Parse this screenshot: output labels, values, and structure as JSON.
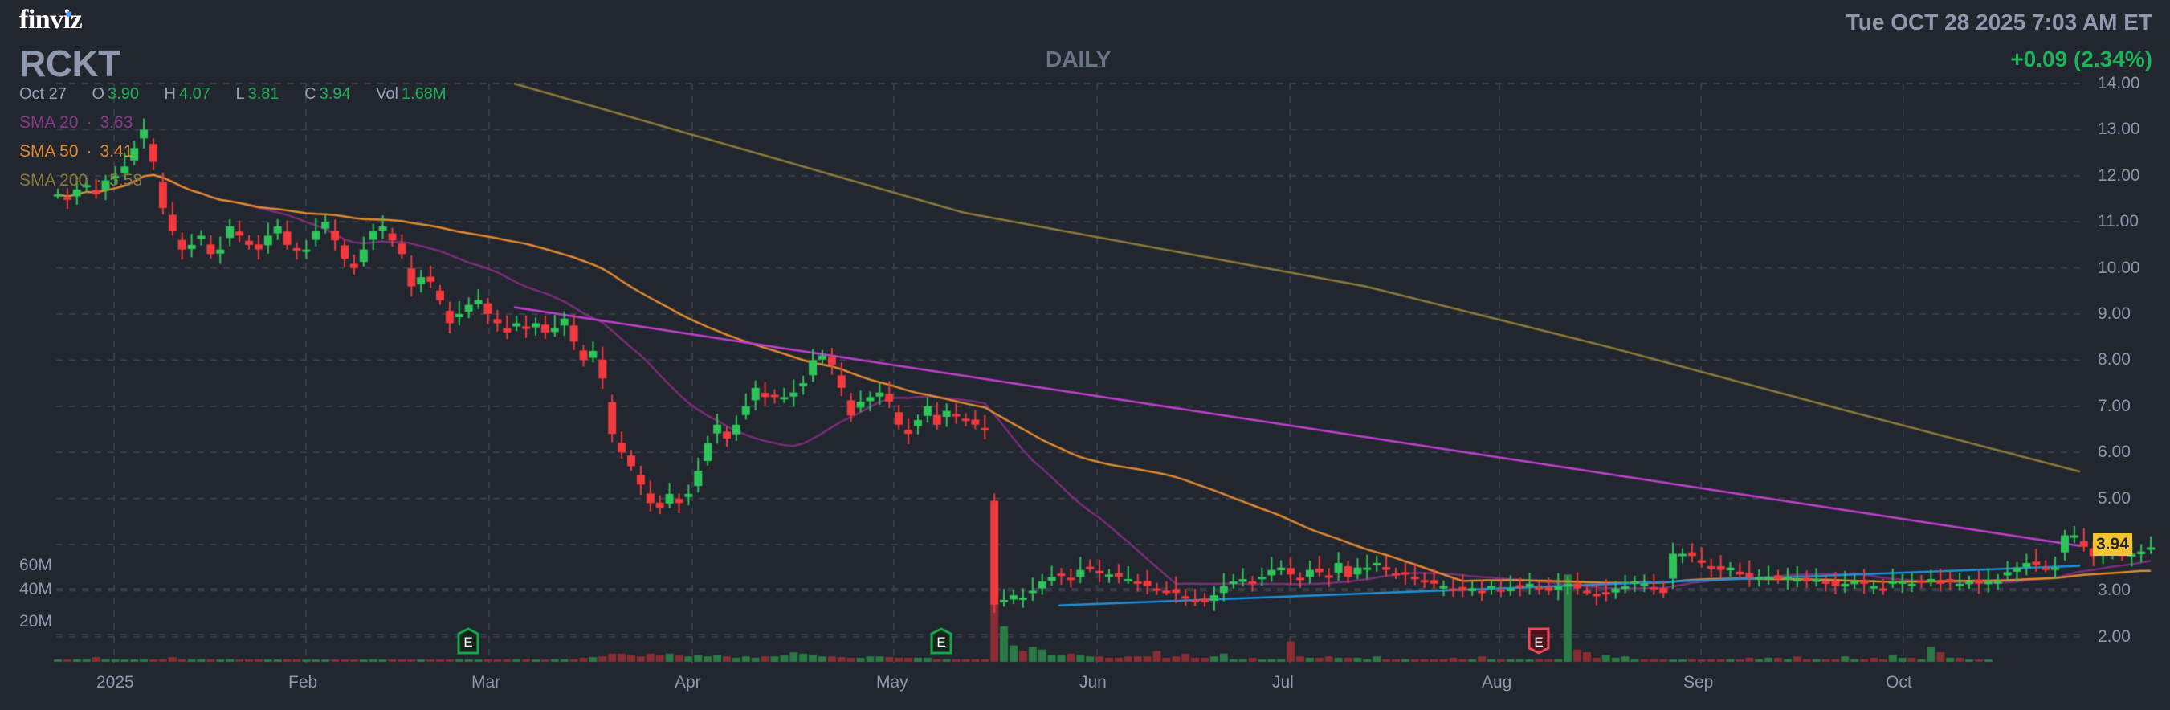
{
  "header": {
    "logo": "finviz",
    "ticker": "RCKT",
    "timeframe": "DAILY",
    "datetime": "Tue OCT 28 2025 7:03 AM ET",
    "change": "+0.09 (2.34%)"
  },
  "ohlc": {
    "date": "Oct 27",
    "open_label": "O",
    "open": "3.90",
    "high_label": "H",
    "high": "4.07",
    "low_label": "L",
    "low": "3.81",
    "close_label": "C",
    "close": "3.94",
    "vol_label": "Vol",
    "vol": "1.68M"
  },
  "legend": [
    {
      "label": "SMA 20",
      "value": "3.63",
      "color": "#8a3a86"
    },
    {
      "label": "SMA 50",
      "value": "3.41",
      "color": "#e08a2e"
    },
    {
      "label": "SMA 200",
      "value": "5.58",
      "color": "#8a7a3a"
    }
  ],
  "last_price": "3.94",
  "colors": {
    "background": "#22262f",
    "up": "#2ec45a",
    "down": "#f2393e",
    "vol_up": "#2a7a45",
    "vol_down": "#8a2c33",
    "grid": "#3a3f4b",
    "sma20": "#7a2e78",
    "sma50": "#e08a2e",
    "sma200": "#8a7a3a",
    "trendline_down": "#c040d0",
    "trendline_up": "#1e90d8",
    "last_price_bg": "#f4c531"
  },
  "chart_data": {
    "type": "candlestick",
    "title": "RCKT DAILY",
    "price_axis": {
      "ticks": [
        "14.00",
        "13.00",
        "12.00",
        "11.00",
        "10.00",
        "9.00",
        "8.00",
        "7.00",
        "6.00",
        "5.00",
        "3.00",
        "2.00"
      ],
      "range": [
        1.5,
        14.0
      ]
    },
    "volume_axis": {
      "ticks": [
        "60M",
        "40M",
        "20M"
      ]
    },
    "x_axis": {
      "ticks": [
        "2025",
        "Feb",
        "Mar",
        "Apr",
        "May",
        "Jun",
        "Jul",
        "Aug",
        "Sep",
        "Oct"
      ]
    },
    "earnings_markers": [
      {
        "label": "E",
        "month": "Feb",
        "type": "positive"
      },
      {
        "label": "E",
        "month": "May",
        "type": "positive"
      },
      {
        "label": "E",
        "month": "Aug",
        "type": "negative"
      }
    ],
    "sma": {
      "sma20": 3.63,
      "sma50": 3.41,
      "sma200": 5.58
    },
    "closes": [
      11.6,
      11.5,
      11.7,
      11.8,
      11.6,
      11.9,
      12.0,
      12.2,
      12.6,
      13.0,
      12.3,
      11.3,
      10.8,
      10.4,
      10.5,
      10.7,
      10.3,
      10.4,
      10.9,
      10.7,
      10.5,
      10.4,
      10.7,
      10.9,
      10.5,
      10.4,
      10.4,
      10.8,
      11.0,
      10.6,
      10.2,
      10.0,
      10.4,
      10.8,
      10.9,
      10.6,
      10.3,
      9.6,
      9.8,
      9.7,
      9.3,
      8.8,
      9.0,
      9.2,
      9.3,
      9.0,
      8.8,
      8.6,
      8.8,
      8.7,
      8.8,
      8.6,
      8.7,
      8.9,
      8.4,
      8.0,
      8.2,
      7.6,
      6.4,
      6.0,
      5.7,
      5.3,
      4.9,
      4.8,
      5.1,
      4.9,
      5.1,
      5.6,
      6.2,
      6.6,
      6.3,
      6.6,
      7.0,
      7.4,
      7.2,
      7.2,
      7.2,
      7.3,
      7.5,
      8.0,
      8.1,
      7.9,
      7.4,
      6.8,
      7.1,
      7.2,
      7.3,
      7.1,
      6.6,
      6.4,
      6.7,
      7.0,
      6.6,
      6.9,
      6.8,
      6.7,
      6.6,
      6.5,
      2.7,
      2.8,
      2.9,
      2.85,
      3.0,
      3.2,
      3.3,
      3.35,
      3.25,
      3.45,
      3.5,
      3.4,
      3.35,
      3.3,
      3.25,
      3.2,
      3.1,
      3.05,
      3.0,
      2.95,
      2.85,
      2.8,
      2.75,
      2.9,
      3.1,
      3.2,
      3.25,
      3.2,
      3.3,
      3.45,
      3.5,
      3.35,
      3.25,
      3.45,
      3.4,
      3.3,
      3.6,
      3.3,
      3.5,
      3.5,
      3.6,
      3.45,
      3.35,
      3.35,
      3.3,
      3.2,
      3.15,
      3.1,
      3.05,
      3.0,
      3.05,
      3.0,
      3.1,
      3.0,
      3.05,
      3.1,
      3.15,
      3.05,
      3.0,
      3.1,
      3.15,
      3.05,
      3.0,
      2.9,
      2.95,
      3.05,
      3.1,
      3.2,
      3.15,
      3.05,
      2.95,
      3.8,
      3.8,
      3.75,
      3.6,
      3.5,
      3.45,
      3.5,
      3.35,
      3.3,
      3.3,
      3.3,
      3.25,
      3.3,
      3.25,
      3.2,
      3.25,
      3.2,
      3.1,
      3.15,
      3.2,
      3.15,
      3.1,
      3.05,
      3.2,
      3.2,
      3.15,
      3.2,
      3.25,
      3.2,
      3.2,
      3.15,
      3.2,
      3.15,
      3.2,
      3.2,
      3.4,
      3.5,
      3.6,
      3.55,
      3.5,
      3.5,
      4.2,
      4.2,
      3.95,
      3.75,
      3.85,
      3.85,
      3.75,
      3.8,
      3.85,
      3.94
    ],
    "volumes_m": [
      1.5,
      1.3,
      2.0,
      2.0,
      3.5,
      2.0,
      2.0,
      1.2,
      1.2,
      2.0,
      1.2,
      2.0,
      3.5,
      2.0,
      2.0,
      2.0,
      2.0,
      1.2,
      2.0,
      1.2,
      1.2,
      2.0,
      1.2,
      1.2,
      2.0,
      2.0,
      1.2,
      1.2,
      1.2,
      1.2,
      1.2,
      1.2,
      1.2,
      2.0,
      1.2,
      1.2,
      1.2,
      1.2,
      1.2,
      1.2,
      1.2,
      1.2,
      2.0,
      1.2,
      1.2,
      2.0,
      1.2,
      2.0,
      2.0,
      2.0,
      1.2,
      1.2,
      2.0,
      2.0,
      2.0,
      3.0,
      3.5,
      4.0,
      6.0,
      6.0,
      5.0,
      4.0,
      6.0,
      5.0,
      6.0,
      5.0,
      4.0,
      5.0,
      4.0,
      5.0,
      4.0,
      3.0,
      4.0,
      3.0,
      4.0,
      4.0,
      5.0,
      7.0,
      6.0,
      5.0,
      4.0,
      4.0,
      3.5,
      3.0,
      3.0,
      4.0,
      4.0,
      3.5,
      3.0,
      3.0,
      3.0,
      3.0,
      2.0,
      2.0,
      2.0,
      2.0,
      2.0,
      2.0,
      63.0,
      26.0,
      12.0,
      8.0,
      11.0,
      9.0,
      5.0,
      5.0,
      6.0,
      5.0,
      4.0,
      4.0,
      3.0,
      3.0,
      4.0,
      4.0,
      4.0,
      8.0,
      3.0,
      4.0,
      6.0,
      3.0,
      3.0,
      4.0,
      6.0,
      2.0,
      2.0,
      3.0,
      1.0,
      2.0,
      2.0,
      15.0,
      4.0,
      3.0,
      3.0,
      4.0,
      3.0,
      3.0,
      3.0,
      2.0,
      4.0,
      2.0,
      2.0,
      2.0,
      2.0,
      2.0,
      2.0,
      2.0,
      3.0,
      2.0,
      2.0,
      4.0,
      2.0,
      2.0,
      2.0,
      2.0,
      1.0,
      2.0,
      2.0,
      2.0,
      64.0,
      9.0,
      7.0,
      3.0,
      5.0,
      3.0,
      4.0,
      2.0,
      2.0,
      2.0,
      2.0,
      1.0,
      1.0,
      2.0,
      1.0,
      2.0,
      2.0,
      2.0,
      1.0,
      3.0,
      2.0,
      3.0,
      3.0,
      2.0,
      4.0,
      2.0,
      2.0,
      2.0,
      2.0,
      4.0,
      2.0,
      2.0,
      3.0,
      2.0,
      5.0,
      3.0,
      3.0,
      2.0,
      11.0,
      7.0,
      3.0,
      3.0,
      1.5,
      1.0,
      1.68
    ],
    "sma200_line": [
      [
        640,
        14.0
      ],
      [
        1200,
        11.2
      ],
      [
        1700,
        9.6
      ],
      [
        2000,
        8.3
      ],
      [
        2300,
        6.9
      ],
      [
        2590,
        5.58
      ]
    ],
    "trendline_down": [
      [
        640,
        9.15
      ],
      [
        2590,
        3.97
      ]
    ],
    "trendline_up": [
      [
        1318,
        2.68
      ],
      [
        2590,
        3.54
      ]
    ]
  }
}
